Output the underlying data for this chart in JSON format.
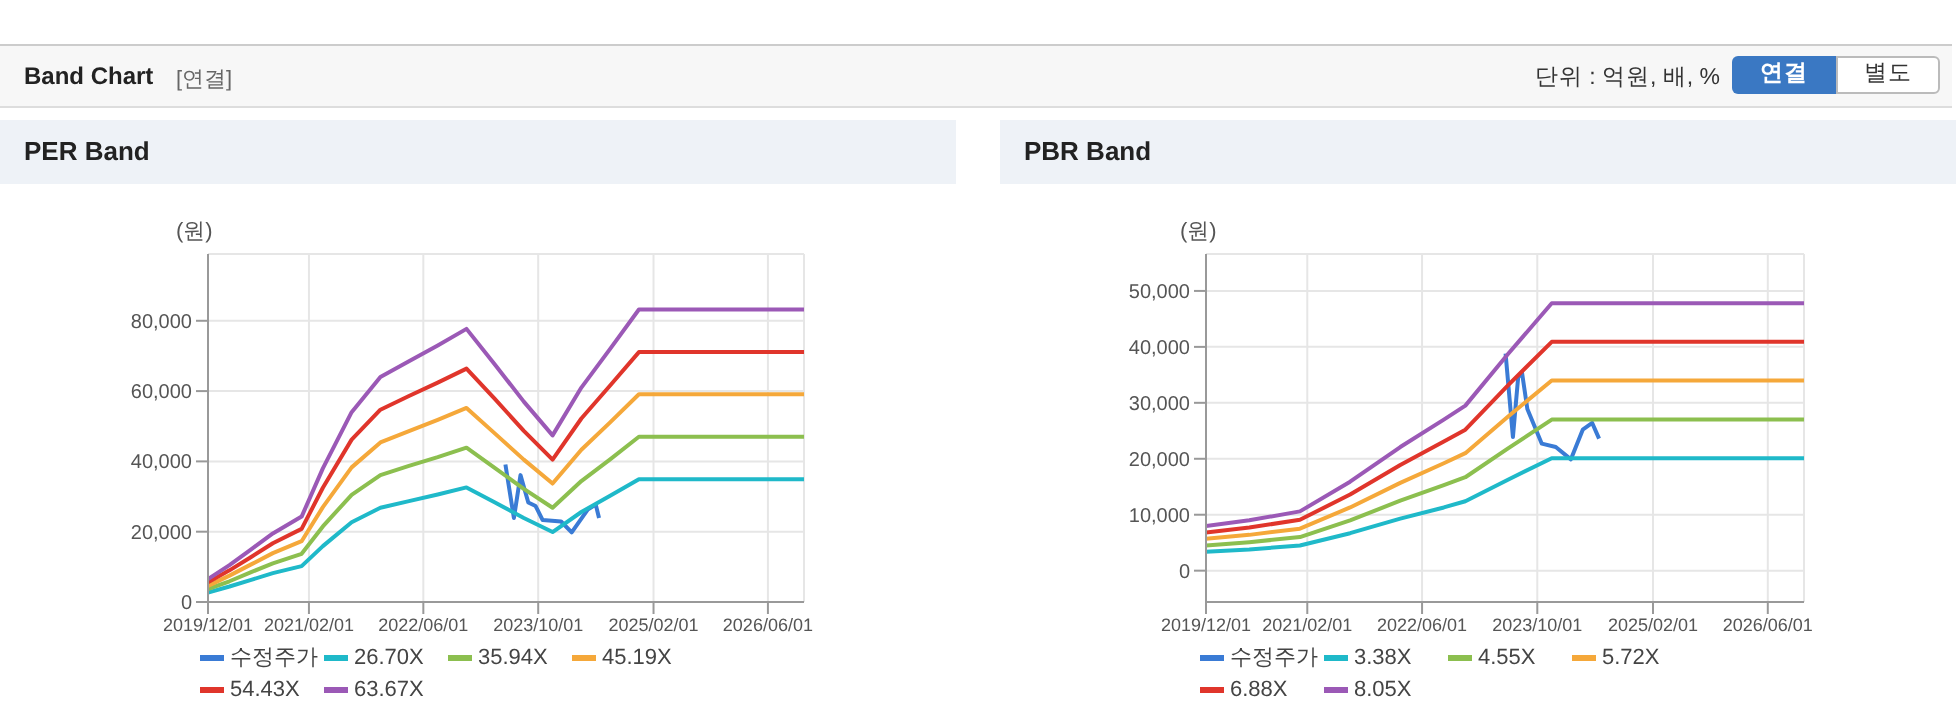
{
  "chart_data": [
    {
      "type": "line",
      "title": "PER Band",
      "ylabel": "(원)",
      "annotations": [
        "Band Chart",
        "[연결]",
        "단위 : 억원, 배, %",
        "연결",
        "별도"
      ],
      "xlim": [
        "2019-12-01",
        "2026-11-01"
      ],
      "xticks": [
        {
          "value": "2019-12-01",
          "label": "2019/12/01"
        },
        {
          "value": "2021-02-01",
          "label": "2021/02/01"
        },
        {
          "value": "2022-06-01",
          "label": "2022/06/01"
        },
        {
          "value": "2023-10-01",
          "label": "2023/10/01"
        },
        {
          "value": "2025-02-01",
          "label": "2025/02/01"
        },
        {
          "value": "2026-06-01",
          "label": "2026/06/01"
        }
      ],
      "ylim": [
        0,
        99000
      ],
      "yticks": [
        0,
        {
          "value": 20000,
          "label": "20,000"
        },
        {
          "value": 40000,
          "label": "40,000"
        },
        {
          "value": 60000,
          "label": "60,000"
        },
        {
          "value": 80000,
          "label": "80,000"
        }
      ],
      "grid": true,
      "legend": "bottom",
      "marker": "none",
      "line_style": "solid",
      "series": [
        {
          "name": "수정주가",
          "color": "#3a7bd5",
          "x": [
            "2023-05-15",
            "2023-06-20",
            "2023-07-18",
            "2023-08-20",
            "2023-09-20",
            "2023-10-20",
            "2024-01-06",
            "2024-02-20",
            "2024-04-28",
            "2024-06-01",
            "2024-06-15"
          ],
          "values": [
            39100,
            23900,
            36100,
            28300,
            27300,
            23300,
            22900,
            19800,
            26300,
            27700,
            23900
          ]
        },
        {
          "name": "26.70X",
          "color": "#1fb9c9",
          "x": [
            "2019-12-01",
            "2020-03-01",
            "2020-06-01",
            "2020-09-01",
            "2021-01-01",
            "2021-04-01",
            "2021-08-01",
            "2021-12-01",
            "2022-04-01",
            "2022-08-01",
            "2022-12-01",
            "2023-04-01",
            "2023-08-01",
            "2023-12-01",
            "2024-04-01",
            "2024-08-01",
            "2024-12-01",
            "2026-11-01"
          ],
          "values": [
            2700,
            4400,
            6300,
            8200,
            10200,
            15900,
            22700,
            26800,
            28700,
            30600,
            32600,
            28300,
            23900,
            19900,
            25600,
            30200,
            34900,
            34900
          ]
        },
        {
          "name": "35.94X",
          "color": "#8cbf4f",
          "x": [
            "2019-12-01",
            "2020-03-01",
            "2020-06-01",
            "2020-09-01",
            "2021-01-01",
            "2021-04-01",
            "2021-08-01",
            "2021-12-01",
            "2022-04-01",
            "2022-08-01",
            "2022-12-01",
            "2023-04-01",
            "2023-08-01",
            "2023-12-01",
            "2024-04-01",
            "2024-08-01",
            "2024-12-01",
            "2026-11-01"
          ],
          "values": [
            3700,
            5900,
            8500,
            11000,
            13700,
            21500,
            30500,
            36100,
            38700,
            41200,
            43900,
            38100,
            32200,
            26800,
            34400,
            40600,
            47000,
            47000
          ]
        },
        {
          "name": "45.19X",
          "color": "#f5a83a",
          "x": [
            "2019-12-01",
            "2020-03-01",
            "2020-06-01",
            "2020-09-01",
            "2021-01-01",
            "2021-04-01",
            "2021-08-01",
            "2021-12-01",
            "2022-04-01",
            "2022-08-01",
            "2022-12-01",
            "2023-04-01",
            "2023-08-01",
            "2023-12-01",
            "2024-04-01",
            "2024-08-01",
            "2024-12-01",
            "2026-11-01"
          ],
          "values": [
            4600,
            7500,
            10700,
            13900,
            17300,
            27000,
            38300,
            45400,
            48600,
            51800,
            55200,
            47900,
            40500,
            33700,
            43300,
            51100,
            59100,
            59100
          ]
        },
        {
          "name": "54.43X",
          "color": "#e0352b",
          "x": [
            "2019-12-01",
            "2020-03-01",
            "2020-06-01",
            "2020-09-01",
            "2021-01-01",
            "2021-04-01",
            "2021-08-01",
            "2021-12-01",
            "2022-04-01",
            "2022-08-01",
            "2022-12-01",
            "2023-04-01",
            "2023-08-01",
            "2023-12-01",
            "2024-04-01",
            "2024-08-01",
            "2024-12-01",
            "2026-11-01"
          ],
          "values": [
            5600,
            9000,
            12800,
            16700,
            20800,
            32500,
            46200,
            54700,
            58600,
            62400,
            66400,
            57700,
            48700,
            40500,
            52200,
            61600,
            71100,
            71100
          ]
        },
        {
          "name": "63.67X",
          "color": "#9b59b6",
          "x": [
            "2019-12-01",
            "2020-03-01",
            "2020-06-01",
            "2020-09-01",
            "2021-01-01",
            "2021-04-01",
            "2021-08-01",
            "2021-12-01",
            "2022-04-01",
            "2022-08-01",
            "2022-12-01",
            "2023-04-01",
            "2023-08-01",
            "2023-12-01",
            "2024-04-01",
            "2024-08-01",
            "2024-12-01",
            "2026-11-01"
          ],
          "values": [
            6500,
            10500,
            15000,
            19500,
            24300,
            38000,
            54000,
            64000,
            68500,
            73000,
            77700,
            67500,
            57000,
            47400,
            61000,
            72000,
            83200,
            83200
          ]
        }
      ]
    },
    {
      "type": "line",
      "title": "PBR Band",
      "ylabel": "(원)",
      "xlim": [
        "2019-12-01",
        "2026-11-01"
      ],
      "xticks": [
        {
          "value": "2019-12-01",
          "label": "2019/12/01"
        },
        {
          "value": "2021-02-01",
          "label": "2021/02/01"
        },
        {
          "value": "2022-06-01",
          "label": "2022/06/01"
        },
        {
          "value": "2023-10-01",
          "label": "2023/10/01"
        },
        {
          "value": "2025-02-01",
          "label": "2025/02/01"
        },
        {
          "value": "2026-06-01",
          "label": "2026/06/01"
        }
      ],
      "ylim": [
        -5600,
        56600
      ],
      "yticks": [
        0,
        {
          "value": 10000,
          "label": "10,000"
        },
        {
          "value": 20000,
          "label": "20,000"
        },
        {
          "value": 30000,
          "label": "30,000"
        },
        {
          "value": 40000,
          "label": "40,000"
        },
        {
          "value": 50000,
          "label": "50,000"
        }
      ],
      "grid": true,
      "legend": "bottom",
      "marker": "none",
      "line_style": "solid",
      "series": [
        {
          "name": "수정주가",
          "color": "#3a7bd5",
          "x": [
            "2023-05-20",
            "2023-06-20",
            "2023-07-12",
            "2023-07-28",
            "2023-08-20",
            "2023-10-20",
            "2023-12-18",
            "2024-02-20",
            "2024-04-10",
            "2024-05-20",
            "2024-06-18"
          ],
          "values": [
            38800,
            23900,
            34500,
            35500,
            28900,
            22700,
            22100,
            19900,
            25200,
            26400,
            23600
          ]
        },
        {
          "name": "3.38X",
          "color": "#1fb9c9",
          "x": [
            "2019-12-01",
            "2020-06-01",
            "2021-01-01",
            "2021-08-01",
            "2022-03-01",
            "2022-09-01",
            "2022-12-01",
            "2023-06-01",
            "2023-12-01",
            "2026-11-01"
          ],
          "values": [
            3400,
            3800,
            4500,
            6700,
            9300,
            11300,
            12400,
            16300,
            20100,
            20100
          ]
        },
        {
          "name": "4.55X",
          "color": "#8cbf4f",
          "x": [
            "2019-12-01",
            "2020-06-01",
            "2021-01-01",
            "2021-08-01",
            "2022-03-01",
            "2022-09-01",
            "2022-12-01",
            "2023-06-01",
            "2023-12-01",
            "2026-11-01"
          ],
          "values": [
            4500,
            5100,
            6000,
            9000,
            12500,
            15300,
            16700,
            21900,
            27000,
            27000
          ]
        },
        {
          "name": "5.72X",
          "color": "#f5a83a",
          "x": [
            "2019-12-01",
            "2020-06-01",
            "2021-01-01",
            "2021-08-01",
            "2022-03-01",
            "2022-09-01",
            "2022-12-01",
            "2023-06-01",
            "2023-12-01",
            "2026-11-01"
          ],
          "values": [
            5700,
            6400,
            7500,
            11300,
            15700,
            19200,
            21000,
            27600,
            34000,
            34000
          ]
        },
        {
          "name": "6.88X",
          "color": "#e0352b",
          "x": [
            "2019-12-01",
            "2020-06-01",
            "2021-01-01",
            "2021-08-01",
            "2022-03-01",
            "2022-09-01",
            "2022-12-01",
            "2023-06-01",
            "2023-12-01",
            "2026-11-01"
          ],
          "values": [
            6800,
            7700,
            9100,
            13600,
            18900,
            23100,
            25200,
            33200,
            40900,
            40900
          ]
        },
        {
          "name": "8.05X",
          "color": "#9b59b6",
          "x": [
            "2019-12-01",
            "2020-06-01",
            "2021-01-01",
            "2021-08-01",
            "2022-03-01",
            "2022-09-01",
            "2022-12-01",
            "2023-06-01",
            "2023-12-01",
            "2026-11-01"
          ],
          "values": [
            8000,
            9000,
            10600,
            15900,
            22100,
            27000,
            29500,
            38800,
            47800,
            47800
          ]
        }
      ]
    }
  ]
}
